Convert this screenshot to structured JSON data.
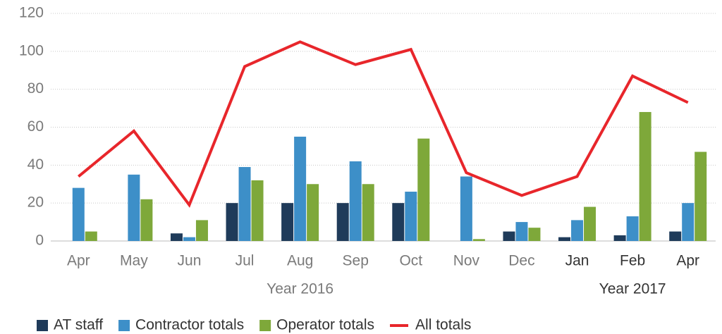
{
  "chart_data": {
    "type": "bar_line",
    "categories": [
      "Apr",
      "May",
      "Jun",
      "Jul",
      "Aug",
      "Sep",
      "Oct",
      "Nov",
      "Dec",
      "Jan",
      "Feb",
      "Apr"
    ],
    "category_groups": [
      {
        "label": "Year 2016",
        "count": 9
      },
      {
        "label": "Year 2017",
        "count": 3
      }
    ],
    "series": [
      {
        "name": "AT staff",
        "type": "bar",
        "color": "#1f3b5a",
        "values": [
          0,
          0,
          4,
          20,
          20,
          20,
          20,
          0,
          5,
          2,
          3,
          5
        ]
      },
      {
        "name": "Contractor totals",
        "type": "bar",
        "color": "#3d8fc8",
        "values": [
          28,
          35,
          2,
          39,
          55,
          42,
          26,
          34,
          10,
          11,
          13,
          20
        ]
      },
      {
        "name": "Operator totals",
        "type": "bar",
        "color": "#7ea83a",
        "values": [
          5,
          22,
          11,
          32,
          30,
          30,
          54,
          1,
          7,
          18,
          68,
          47
        ]
      },
      {
        "name": "All totals",
        "type": "line",
        "color": "#e8262b",
        "values": [
          34,
          58,
          19,
          92,
          105,
          93,
          101,
          36,
          24,
          34,
          87,
          73
        ]
      }
    ],
    "ylim": [
      0,
      120
    ],
    "yticks": [
      0,
      20,
      40,
      60,
      80,
      100,
      120
    ],
    "grid": true
  }
}
